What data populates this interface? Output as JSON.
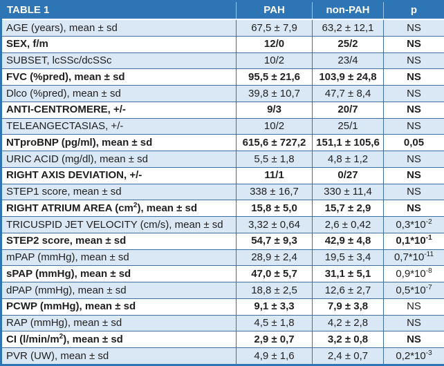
{
  "table": {
    "header": {
      "title": "TABLE 1",
      "col_pah": "PAH",
      "col_nonpah": "non-PAH",
      "col_p": "p"
    },
    "rows": [
      {
        "label": "AGE (years), mean ± sd",
        "pah": "67,5 ± 7,9",
        "non_pah": "63,2 ± 12,1",
        "p": "NS"
      },
      {
        "label": "SEX, f/m",
        "pah": "12/0",
        "non_pah": "25/2",
        "p": "NS"
      },
      {
        "label": "SUBSET, lcSSc/dcSSc",
        "pah": "10/2",
        "non_pah": "23/4",
        "p": "NS"
      },
      {
        "label": "FVC (%pred), mean ± sd",
        "pah": "95,5 ± 21,6",
        "non_pah": "103,9 ± 24,8",
        "p": "NS"
      },
      {
        "label": "Dlco (%pred), mean ± sd",
        "pah": "39,8 ± 10,7",
        "non_pah": "47,7 ± 8,4",
        "p": "NS"
      },
      {
        "label": "ANTI-CENTROMERE, +/-",
        "pah": "9/3",
        "non_pah": "20/7",
        "p": "NS"
      },
      {
        "label": "TELEANGECTASIAS, +/-",
        "pah": "10/2",
        "non_pah": "25/1",
        "p": "NS"
      },
      {
        "label": "NTproBNP (pg/ml), mean ± sd",
        "pah": "615,6 ± 727,2",
        "non_pah": "151,1 ± 105,6",
        "p": "0,05"
      },
      {
        "label": "URIC ACID (mg/dl), mean ± sd",
        "pah": "5,5 ± 1,8",
        "non_pah": "4,8 ± 1,2",
        "p": "NS"
      },
      {
        "label": "RIGHT AXIS DEVIATION, +/-",
        "pah": "11/1",
        "non_pah": "0/27",
        "p": "NS"
      },
      {
        "label": "STEP1 score, mean ± sd",
        "pah": "338 ± 16,7",
        "non_pah": "330 ± 11,4",
        "p": "NS"
      },
      {
        "label": "RIGHT ATRIUM AREA (cm",
        "label_sup": "2",
        "label_rest": "), mean ± sd",
        "pah": "15,8 ± 5,0",
        "non_pah": "15,7 ± 2,9",
        "p": "NS"
      },
      {
        "label": "TRICUSPID JET VELOCITY (cm/s), mean ± sd",
        "pah": "3,32 ± 0,64",
        "non_pah": "2,6 ± 0,42",
        "p": "0,3*10",
        "p_exp": "-2"
      },
      {
        "label": "STEP2 score, mean ± sd",
        "pah": "54,7 ± 9,3",
        "non_pah": "42,9 ± 4,8",
        "p": "0,1*10",
        "p_exp": "-1"
      },
      {
        "label": "mPAP (mmHg), mean ± sd",
        "pah": "28,9 ± 2,4",
        "non_pah": "19,5 ± 3,4",
        "p": "0,7*10",
        "p_exp": "-11"
      },
      {
        "label": "sPAP (mmHg), mean ± sd",
        "pah": "47,0 ± 5,7",
        "non_pah": "31,1 ± 5,1",
        "p": "0,9*10",
        "p_exp": "-8"
      },
      {
        "label": "dPAP (mmHg), mean ± sd",
        "pah": "18,8 ± 2,5",
        "non_pah": "12,6 ± 2,7",
        "p": "0,5*10",
        "p_exp": "-7"
      },
      {
        "label": "PCWP (mmHg), mean ± sd",
        "pah": "9,1 ± 3,3",
        "non_pah": "7,9 ± 3,8",
        "p": "NS"
      },
      {
        "label": "RAP (mmHg), mean ± sd",
        "pah": "4,5 ± 1,8",
        "non_pah": "4,2 ± 2,8",
        "p": "NS"
      },
      {
        "label": "CI (l/min/m",
        "label_sup": "2",
        "label_rest": "), mean ± sd",
        "pah": "2,9 ± 0,7",
        "non_pah": "3,2 ± 0,8",
        "p": "NS"
      },
      {
        "label": "PVR (UW), mean ± sd",
        "pah": "4,9 ± 1,6",
        "non_pah": "2,4 ± 0,7",
        "p": "0,2*10",
        "p_exp": "-3"
      }
    ]
  },
  "colors": {
    "header_bg": "#2e75b6",
    "header_text": "#ffffff",
    "row_alt_bg": "#dae7f4",
    "row_bg": "#ffffff",
    "grid_line": "#3e6e9e",
    "text": "#1f1f1f"
  }
}
